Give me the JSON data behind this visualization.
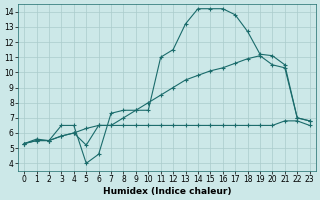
{
  "xlabel": "Humidex (Indice chaleur)",
  "bg_color": "#cce8e8",
  "grid_color": "#aacccc",
  "line_color": "#1a6b6b",
  "xlim": [
    -0.5,
    23.5
  ],
  "ylim": [
    3.5,
    14.5
  ],
  "xticks": [
    0,
    1,
    2,
    3,
    4,
    5,
    6,
    7,
    8,
    9,
    10,
    11,
    12,
    13,
    14,
    15,
    16,
    17,
    18,
    19,
    20,
    21,
    22,
    23
  ],
  "yticks": [
    4,
    5,
    6,
    7,
    8,
    9,
    10,
    11,
    12,
    13,
    14
  ],
  "line1_x": [
    0,
    1,
    2,
    3,
    4,
    5,
    6,
    7,
    8,
    9,
    10,
    11,
    12,
    13,
    14,
    15,
    16,
    17,
    18,
    19,
    20,
    21,
    22,
    23
  ],
  "line1_y": [
    5.3,
    5.6,
    5.5,
    6.5,
    6.5,
    4.0,
    4.6,
    7.3,
    7.5,
    7.5,
    7.5,
    11.0,
    11.5,
    13.2,
    14.2,
    14.2,
    14.2,
    13.8,
    12.7,
    11.2,
    11.1,
    10.5,
    7.0,
    6.8
  ],
  "line2_x": [
    0,
    1,
    2,
    3,
    4,
    5,
    6,
    7,
    8,
    9,
    10,
    11,
    12,
    13,
    14,
    15,
    16,
    17,
    18,
    19,
    20,
    21,
    22,
    23
  ],
  "line2_y": [
    5.3,
    5.5,
    5.5,
    5.8,
    6.0,
    5.2,
    6.5,
    6.5,
    7.0,
    7.5,
    8.0,
    8.5,
    9.0,
    9.5,
    9.8,
    10.1,
    10.3,
    10.6,
    10.9,
    11.1,
    10.5,
    10.3,
    7.0,
    6.8
  ],
  "line3_x": [
    0,
    1,
    2,
    3,
    4,
    5,
    6,
    7,
    8,
    9,
    10,
    11,
    12,
    13,
    14,
    15,
    16,
    17,
    18,
    19,
    20,
    21,
    22,
    23
  ],
  "line3_y": [
    5.3,
    5.5,
    5.5,
    5.8,
    6.0,
    6.3,
    6.5,
    6.5,
    6.5,
    6.5,
    6.5,
    6.5,
    6.5,
    6.5,
    6.5,
    6.5,
    6.5,
    6.5,
    6.5,
    6.5,
    6.5,
    6.8,
    6.8,
    6.5
  ]
}
